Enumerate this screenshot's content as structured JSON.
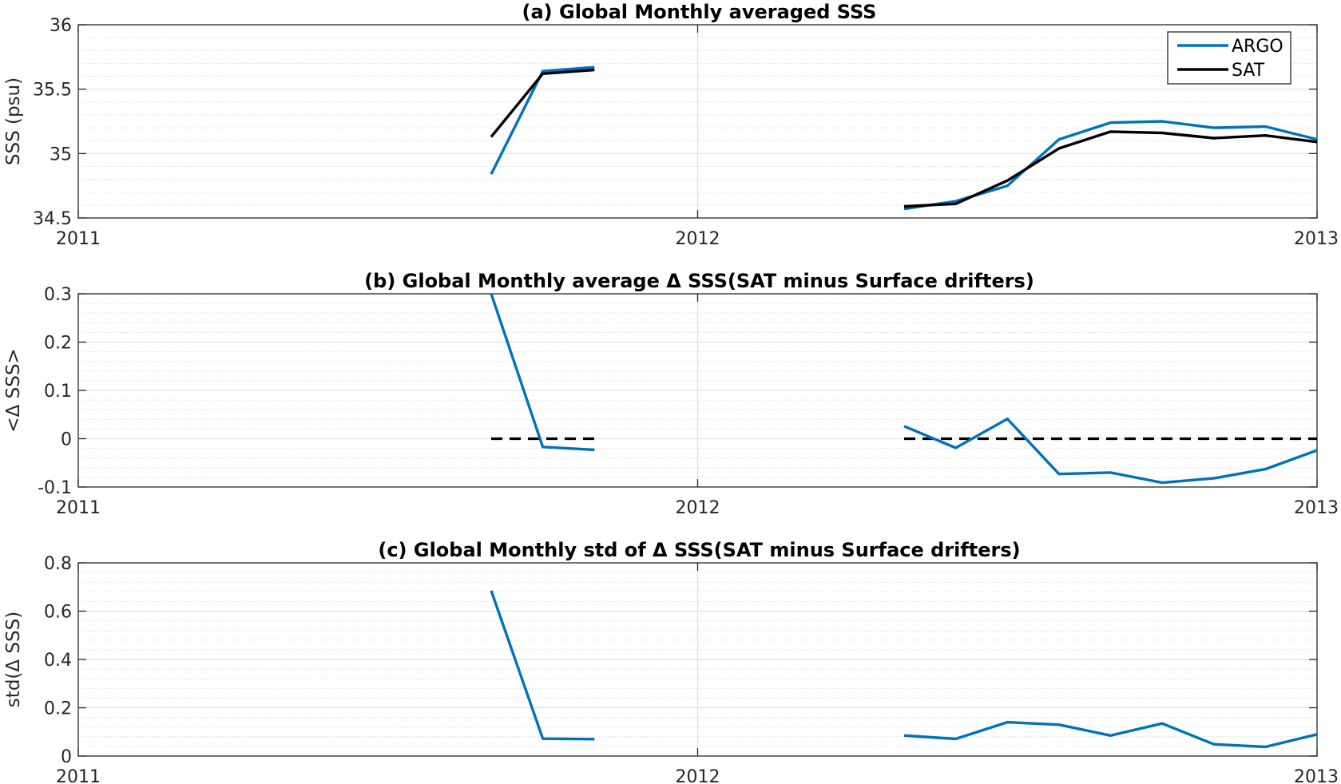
{
  "chart_data": [
    {
      "type": "line",
      "title": "(a) Global Monthly averaged SSS",
      "xlabel": "",
      "ylabel": "SSS (psu)",
      "xticks": [
        "2011",
        "2012",
        "2013"
      ],
      "xlim": [
        "2011-01",
        "2013-01"
      ],
      "ylim": [
        34.5,
        36
      ],
      "yticks": [
        "34.5",
        "35",
        "35.5",
        "36"
      ],
      "grid": true,
      "legend": "top-right",
      "series": [
        {
          "name": "ARGO",
          "color": "#0072BD",
          "segments": [
            {
              "x": [
                "2011-09",
                "2011-10",
                "2011-11"
              ],
              "y": [
                34.84,
                35.64,
                35.67
              ]
            },
            {
              "x": [
                "2012-05",
                "2012-06",
                "2012-07",
                "2012-08",
                "2012-09",
                "2012-10",
                "2012-11",
                "2012-12",
                "2013-01"
              ],
              "y": [
                34.57,
                34.63,
                34.75,
                35.11,
                35.24,
                35.25,
                35.2,
                35.21,
                35.11
              ]
            }
          ]
        },
        {
          "name": "SAT",
          "color": "#000000",
          "segments": [
            {
              "x": [
                "2011-09",
                "2011-10",
                "2011-11"
              ],
              "y": [
                35.13,
                35.62,
                35.65
              ]
            },
            {
              "x": [
                "2012-05",
                "2012-06",
                "2012-07",
                "2012-08",
                "2012-09",
                "2012-10",
                "2012-11",
                "2012-12",
                "2013-01"
              ],
              "y": [
                34.59,
                34.61,
                34.79,
                35.04,
                35.17,
                35.16,
                35.12,
                35.14,
                35.09
              ]
            }
          ]
        }
      ]
    },
    {
      "type": "line",
      "title": "(b) Global Monthly average Δ SSS(SAT minus Surface drifters)",
      "xlabel": "",
      "ylabel": "<Δ SSS>",
      "xticks": [
        "2011",
        "2012",
        "2013"
      ],
      "xlim": [
        "2011-01",
        "2013-01"
      ],
      "ylim": [
        -0.1,
        0.3
      ],
      "yticks": [
        "-0.1",
        "0",
        "0.1",
        "0.2",
        "0.3"
      ],
      "grid": true,
      "series": [
        {
          "color": "#0072BD",
          "segments": [
            {
              "x": [
                "2011-09",
                "2011-10",
                "2011-11"
              ],
              "y": [
                0.3,
                -0.017,
                -0.023
              ]
            },
            {
              "x": [
                "2012-05",
                "2012-06",
                "2012-07",
                "2012-08",
                "2012-09",
                "2012-10",
                "2012-11",
                "2012-12",
                "2013-01"
              ],
              "y": [
                0.026,
                -0.019,
                0.041,
                -0.073,
                -0.07,
                -0.091,
                -0.082,
                -0.063,
                -0.024
              ]
            }
          ]
        }
      ],
      "reference_lines": [
        {
          "y": 0,
          "style": "dashed",
          "color": "#000000",
          "x_ranges": [
            [
              "2011-09",
              "2011-11"
            ],
            [
              "2012-05",
              "2013-01"
            ]
          ]
        }
      ]
    },
    {
      "type": "line",
      "title": "(c) Global Monthly std of Δ SSS(SAT minus Surface drifters)",
      "xlabel": "",
      "ylabel": "std(Δ SSS)",
      "xticks": [
        "2011",
        "2012",
        "2013"
      ],
      "xlim": [
        "2011-01",
        "2013-01"
      ],
      "ylim": [
        0,
        0.8
      ],
      "yticks": [
        "0",
        "0.2",
        "0.4",
        "0.6",
        "0.8"
      ],
      "grid": true,
      "series": [
        {
          "color": "#0072BD",
          "segments": [
            {
              "x": [
                "2011-09",
                "2011-10",
                "2011-11"
              ],
              "y": [
                0.685,
                0.072,
                0.07
              ]
            },
            {
              "x": [
                "2012-05",
                "2012-06",
                "2012-07",
                "2012-08",
                "2012-09",
                "2012-10",
                "2012-11",
                "2012-12",
                "2013-01"
              ],
              "y": [
                0.085,
                0.071,
                0.14,
                0.13,
                0.085,
                0.135,
                0.049,
                0.038,
                0.09
              ]
            }
          ]
        }
      ]
    }
  ]
}
